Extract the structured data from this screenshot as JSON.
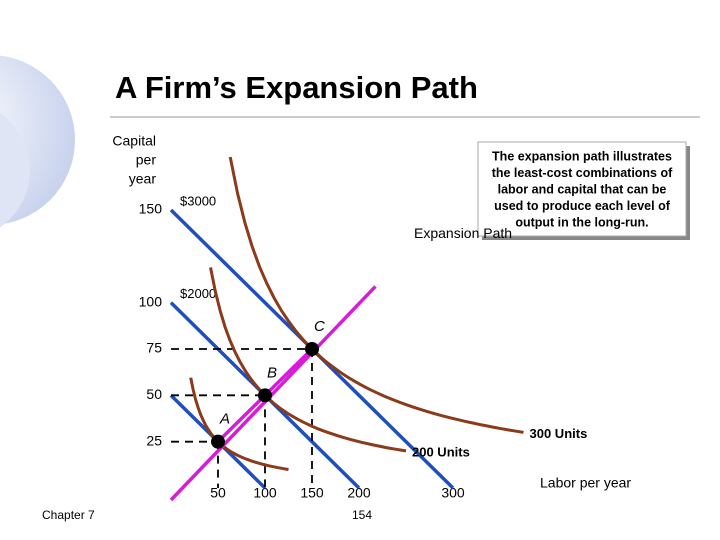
{
  "chart_data": {
    "type": "expansion-path",
    "title": "A Firm’s Expansion Path",
    "y_label": [
      "Capital",
      "per",
      "year"
    ],
    "x_label": "Labor per year",
    "xlim": [
      0,
      300
    ],
    "ylim": [
      0,
      150
    ],
    "xticks": [
      50,
      100,
      150,
      200,
      300
    ],
    "yticks": [
      25,
      50,
      75,
      100,
      150
    ],
    "points": [
      {
        "label": "A",
        "x": 50,
        "y": 25
      },
      {
        "label": "B",
        "x": 100,
        "y": 50
      },
      {
        "label": "C",
        "x": 150,
        "y": 75
      }
    ],
    "isocost_lines": [
      {
        "label": null,
        "y_intercept": 50,
        "x_intercept": 100
      },
      {
        "label": "$2000",
        "y_intercept": 100,
        "x_intercept": 200
      },
      {
        "label": "$3000",
        "y_intercept": 150,
        "x_intercept": 300
      }
    ],
    "isoquants": [
      {
        "label": null
      },
      {
        "label": "200 Units"
      },
      {
        "label": "300 Units"
      }
    ],
    "expansion_path_label": "Expansion Path",
    "note": [
      "The expansion path illustrates",
      "the least-cost combinations of",
      "labor and capital that can be",
      "used to produce each level of",
      "output in the long-run."
    ],
    "isocost_color": "#1f4fbf",
    "isoquant_color": "#8b3a1a",
    "path_color": "#d81bd8",
    "footer_left": "Chapter 7",
    "footer_page": "154"
  }
}
